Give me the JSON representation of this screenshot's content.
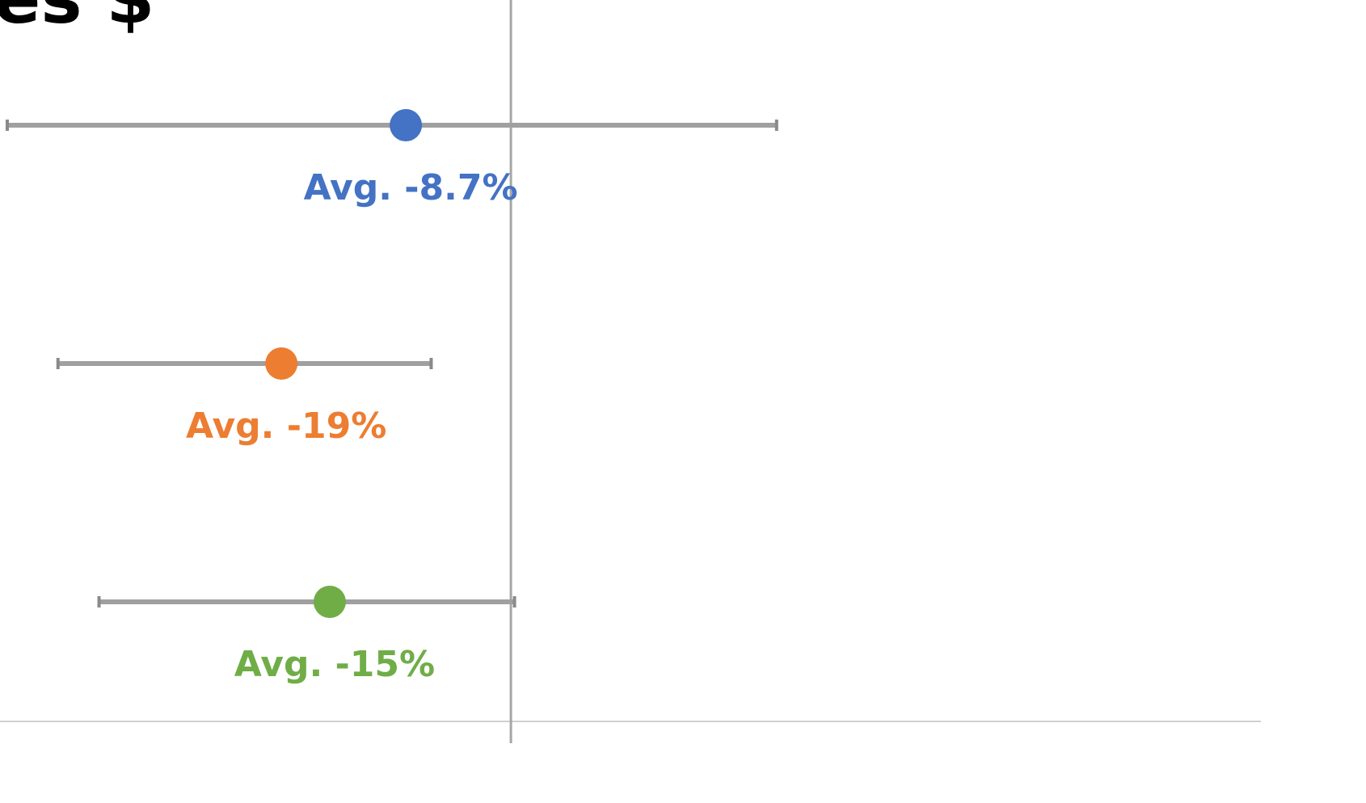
{
  "chart_data": {
    "type": "dot-errorbar",
    "title": "es $",
    "xlim": [
      -42.3,
      62.1
    ],
    "xref": 0,
    "series": [
      {
        "color": "#4472c4",
        "values": [
          -8.7
        ],
        "value_labels": [
          "Avg. -8.7%"
        ],
        "low": [
          -41.7
        ],
        "high": [
          22
        ]
      },
      {
        "color": "#ed7d31",
        "values": [
          -19
        ],
        "value_labels": [
          "Avg. -19%"
        ],
        "low": [
          -37.5
        ],
        "high": [
          -6.6
        ]
      },
      {
        "color": "#70ad47",
        "values": [
          -15
        ],
        "value_labels": [
          "Avg. -15%"
        ],
        "low": [
          -34.1
        ],
        "high": [
          0.3
        ]
      }
    ]
  }
}
